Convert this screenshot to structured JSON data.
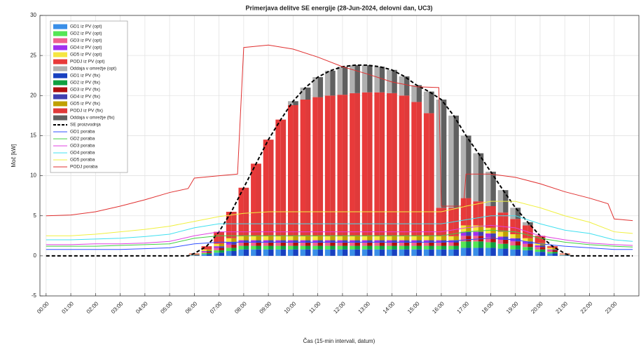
{
  "chart_data": {
    "type": "bar",
    "title": "Primerjava delitve SE energije (28-Jun-2024, delovni dan, UC3)",
    "xlabel": "Čas (15-min intervali, datum)",
    "ylabel": "Moč [kW]",
    "x": [
      6,
      6.5,
      7,
      7.5,
      8,
      8.5,
      9,
      9.5,
      10,
      10.5,
      11,
      11.5,
      12,
      12.5,
      13,
      13.5,
      14,
      14.5,
      15,
      15.5,
      16,
      16.5,
      17,
      17.5,
      18,
      18.5,
      19,
      19.5,
      20,
      20.5,
      21
    ],
    "xlim": [
      -0.25,
      24
    ],
    "xticks": [
      {
        "value": 0,
        "label": "00:00"
      },
      {
        "value": 1,
        "label": "01:00"
      },
      {
        "value": 2,
        "label": "02:00"
      },
      {
        "value": 3,
        "label": "03:00"
      },
      {
        "value": 4,
        "label": "04:00"
      },
      {
        "value": 5,
        "label": "05:00"
      },
      {
        "value": 6,
        "label": "06:00"
      },
      {
        "value": 7,
        "label": "07:00"
      },
      {
        "value": 8,
        "label": "08:00"
      },
      {
        "value": 9,
        "label": "09:00"
      },
      {
        "value": 10,
        "label": "10:00"
      },
      {
        "value": 11,
        "label": "11:00"
      },
      {
        "value": 12,
        "label": "12:00"
      },
      {
        "value": 13,
        "label": "13:00"
      },
      {
        "value": 14,
        "label": "14:00"
      },
      {
        "value": 15,
        "label": "15:00"
      },
      {
        "value": 16,
        "label": "16:00"
      },
      {
        "value": 17,
        "label": "17:00"
      },
      {
        "value": 18,
        "label": "18:00"
      },
      {
        "value": 19,
        "label": "19:00"
      },
      {
        "value": 20,
        "label": "20:00"
      },
      {
        "value": 21,
        "label": "21:00"
      },
      {
        "value": 22,
        "label": "22:00"
      },
      {
        "value": 23,
        "label": "23:00"
      }
    ],
    "ylim": [
      -5,
      30
    ],
    "yticks": [
      -5,
      0,
      5,
      10,
      15,
      20,
      25,
      30
    ],
    "grid": true,
    "legend": "upper left",
    "series": [
      {
        "name": "GD1 iz PV (opt)",
        "type": "bar",
        "color": "#3a8fe8",
        "values": [
          0.05,
          0.2,
          0.4,
          0.6,
          0.8,
          0.8,
          0.8,
          0.8,
          0.8,
          0.8,
          0.8,
          0.8,
          0.8,
          0.8,
          0.8,
          0.8,
          0.8,
          0.8,
          0.8,
          0.8,
          0.8,
          0.8,
          1.0,
          1.0,
          1.0,
          0.9,
          0.8,
          0.7,
          0.5,
          0.3,
          0.05
        ]
      },
      {
        "name": "GD2 iz PV (opt)",
        "type": "bar",
        "color": "#55e655",
        "values": [
          0.05,
          0.15,
          0.3,
          0.4,
          0.45,
          0.45,
          0.45,
          0.45,
          0.45,
          0.45,
          0.45,
          0.45,
          0.45,
          0.45,
          0.45,
          0.45,
          0.45,
          0.45,
          0.45,
          0.45,
          0.45,
          0.45,
          0.8,
          0.8,
          0.7,
          0.6,
          0.5,
          0.4,
          0.3,
          0.2,
          0.05
        ]
      },
      {
        "name": "GD3 iz PV (opt)",
        "type": "bar",
        "color": "#f06090",
        "values": [
          0.05,
          0.15,
          0.3,
          0.4,
          0.4,
          0.4,
          0.4,
          0.4,
          0.4,
          0.4,
          0.4,
          0.4,
          0.4,
          0.4,
          0.4,
          0.4,
          0.4,
          0.4,
          0.4,
          0.4,
          0.4,
          0.4,
          0.7,
          0.7,
          0.6,
          0.5,
          0.5,
          0.4,
          0.3,
          0.2,
          0.05
        ]
      },
      {
        "name": "GD4 iz PV (opt)",
        "type": "bar",
        "color": "#a030f0",
        "values": [
          0.03,
          0.1,
          0.2,
          0.3,
          0.3,
          0.3,
          0.3,
          0.3,
          0.3,
          0.3,
          0.3,
          0.3,
          0.3,
          0.3,
          0.3,
          0.3,
          0.3,
          0.3,
          0.3,
          0.3,
          0.3,
          0.3,
          0.5,
          0.5,
          0.5,
          0.4,
          0.4,
          0.3,
          0.2,
          0.1,
          0.03
        ]
      },
      {
        "name": "GD5 iz PV (opt)",
        "type": "bar",
        "color": "#f5e642",
        "values": [
          0.05,
          0.2,
          0.3,
          0.5,
          0.5,
          0.5,
          0.5,
          0.5,
          0.5,
          0.5,
          0.5,
          0.5,
          0.5,
          0.5,
          0.5,
          0.5,
          0.5,
          0.5,
          0.5,
          0.5,
          0.5,
          0.5,
          0.8,
          0.8,
          0.7,
          0.6,
          0.5,
          0.4,
          0.3,
          0.2,
          0.05
        ]
      },
      {
        "name": "PODJ iz PV (opt)",
        "type": "bar",
        "color": "#e83a3a",
        "values": [
          0.07,
          0.4,
          1.5,
          3.3,
          6.05,
          9.05,
          12.05,
          14.55,
          16.35,
          17.05,
          17.35,
          17.55,
          17.65,
          17.85,
          17.95,
          17.95,
          17.85,
          17.55,
          16.75,
          15.35,
          3.55,
          3.55,
          3.4,
          3.0,
          2.7,
          2.4,
          1.9,
          1.6,
          0.9,
          0.2,
          0.07
        ]
      },
      {
        "name": "Oddaja v omrežje (opt)",
        "type": "bar",
        "color": "#b0b0b0",
        "values": [
          0,
          0,
          0,
          0,
          0,
          0,
          0,
          0,
          0.5,
          1.5,
          2.5,
          3.1,
          3.5,
          3.5,
          3.4,
          3.2,
          2.9,
          2.4,
          2.1,
          2.7,
          13.5,
          11.5,
          7.8,
          6.0,
          4.3,
          2.8,
          1.4,
          0.4,
          0,
          0,
          0
        ]
      },
      {
        "name": "GD1 iz PV (fix)",
        "type": "bar",
        "color": "#1840c0",
        "values": [
          0.05,
          0.2,
          0.4,
          0.6,
          0.8,
          0.8,
          0.8,
          0.8,
          0.8,
          0.8,
          0.8,
          0.8,
          0.8,
          0.8,
          0.8,
          0.8,
          0.8,
          0.8,
          0.8,
          0.8,
          0.8,
          0.8,
          1.0,
          1.0,
          1.0,
          0.9,
          0.8,
          0.7,
          0.5,
          0.3,
          0.05
        ]
      },
      {
        "name": "GD2 iz PV (fix)",
        "type": "bar",
        "color": "#10a040",
        "values": [
          0.05,
          0.15,
          0.3,
          0.4,
          0.45,
          0.45,
          0.45,
          0.45,
          0.45,
          0.45,
          0.45,
          0.45,
          0.45,
          0.45,
          0.45,
          0.45,
          0.45,
          0.45,
          0.45,
          0.45,
          0.45,
          0.45,
          0.8,
          0.8,
          0.7,
          0.6,
          0.5,
          0.4,
          0.3,
          0.2,
          0.05
        ]
      },
      {
        "name": "GD3 iz PV (fix)",
        "type": "bar",
        "color": "#b01010",
        "values": [
          0.05,
          0.15,
          0.3,
          0.4,
          0.4,
          0.4,
          0.4,
          0.4,
          0.4,
          0.4,
          0.4,
          0.4,
          0.4,
          0.4,
          0.4,
          0.4,
          0.4,
          0.4,
          0.4,
          0.4,
          0.4,
          0.4,
          0.7,
          0.7,
          0.6,
          0.5,
          0.5,
          0.4,
          0.3,
          0.2,
          0.05
        ]
      },
      {
        "name": "GD4 iz PV (fix)",
        "type": "bar",
        "color": "#4040b0",
        "values": [
          0.03,
          0.1,
          0.2,
          0.3,
          0.3,
          0.3,
          0.3,
          0.3,
          0.3,
          0.3,
          0.3,
          0.3,
          0.3,
          0.3,
          0.3,
          0.3,
          0.3,
          0.3,
          0.3,
          0.3,
          0.3,
          0.3,
          0.5,
          0.5,
          0.5,
          0.4,
          0.4,
          0.3,
          0.2,
          0.1,
          0.03
        ]
      },
      {
        "name": "GD5 iz PV (fix)",
        "type": "bar",
        "color": "#c0a000",
        "values": [
          0.05,
          0.2,
          0.3,
          0.5,
          0.5,
          0.5,
          0.5,
          0.5,
          0.5,
          0.5,
          0.5,
          0.5,
          0.5,
          0.5,
          0.5,
          0.5,
          0.5,
          0.5,
          0.5,
          0.5,
          0.5,
          0.5,
          0.8,
          0.8,
          0.7,
          0.6,
          0.5,
          0.4,
          0.3,
          0.2,
          0.05
        ]
      },
      {
        "name": "PODJ iz PV (fix)",
        "type": "bar",
        "color": "#e03a3a",
        "values": [
          0.07,
          0.4,
          1.5,
          3.3,
          6.05,
          9.05,
          12.05,
          14.55,
          16.35,
          17.05,
          17.35,
          17.55,
          17.65,
          17.85,
          17.95,
          17.95,
          17.85,
          17.55,
          16.75,
          15.35,
          3.55,
          3.55,
          3.4,
          3.0,
          2.7,
          2.4,
          1.9,
          1.6,
          0.9,
          0.2,
          0.07
        ]
      },
      {
        "name": "Oddaja v omrežje (fix)",
        "type": "bar",
        "color": "#606060",
        "values": [
          0,
          0,
          0,
          0,
          0,
          0,
          0,
          0,
          0.5,
          1.5,
          2.5,
          3.1,
          3.5,
          3.5,
          3.4,
          3.2,
          2.9,
          2.4,
          2.1,
          2.7,
          13.5,
          11.5,
          7.8,
          6.0,
          4.3,
          2.8,
          1.4,
          0.4,
          0,
          0,
          0
        ]
      },
      {
        "name": "SE proizvodnja",
        "type": "line",
        "linestyle": "dashed",
        "color": "#000000",
        "x": [
          0,
          5.75,
          6,
          6.5,
          7,
          7.5,
          8,
          8.5,
          9,
          9.5,
          10,
          10.5,
          11,
          11.5,
          12,
          12.5,
          13,
          13.5,
          14,
          14.5,
          15,
          15.5,
          16,
          16.5,
          17,
          17.5,
          18,
          18.5,
          19,
          19.5,
          20,
          20.5,
          21,
          21.25,
          23.75
        ],
        "values": [
          0,
          0,
          0.3,
          1.2,
          3,
          5.5,
          8.5,
          11.5,
          14.5,
          17,
          19.3,
          21,
          22.3,
          23.1,
          23.6,
          23.8,
          23.8,
          23.6,
          23.2,
          22.4,
          21.3,
          20.5,
          19.5,
          17.5,
          15,
          12.8,
          10.5,
          8.2,
          6,
          4.2,
          2.5,
          1.2,
          0.3,
          0,
          0
        ]
      },
      {
        "name": "GD1 poraba",
        "type": "line",
        "color": "#3050ff",
        "x": [
          0,
          1,
          2,
          3,
          4,
          5,
          6,
          7,
          8,
          9,
          10,
          11,
          12,
          13,
          14,
          15,
          16,
          17,
          18,
          19,
          20,
          21,
          22,
          23,
          23.75
        ],
        "values": [
          0.8,
          0.8,
          0.8,
          0.8,
          0.9,
          1.0,
          1.5,
          1.7,
          1.7,
          1.7,
          1.7,
          1.7,
          1.7,
          1.7,
          1.7,
          1.7,
          1.7,
          2.0,
          2.2,
          2.0,
          1.5,
          1.2,
          1.0,
          0.8,
          0.8
        ]
      },
      {
        "name": "GD2 poraba",
        "type": "line",
        "color": "#40d040",
        "x": [
          0,
          1,
          2,
          3,
          4,
          5,
          6,
          7,
          8,
          9,
          10,
          11,
          12,
          13,
          14,
          15,
          16,
          17,
          18,
          19,
          20,
          21,
          22,
          23,
          23.75
        ],
        "values": [
          1.2,
          1.2,
          1.2,
          1.3,
          1.4,
          1.5,
          2.2,
          2.5,
          2.5,
          2.5,
          2.5,
          2.5,
          2.5,
          2.5,
          2.5,
          2.5,
          2.5,
          3.0,
          3.2,
          3.0,
          2.2,
          1.7,
          1.4,
          1.2,
          1.1
        ]
      },
      {
        "name": "GD3 poraba",
        "type": "line",
        "color": "#e040e0",
        "x": [
          0,
          1,
          2,
          3,
          4,
          5,
          6,
          7,
          8,
          9,
          10,
          11,
          12,
          13,
          14,
          15,
          16,
          17,
          18,
          19,
          20,
          21,
          22,
          23,
          23.75
        ],
        "values": [
          1.4,
          1.4,
          1.5,
          1.5,
          1.6,
          1.8,
          2.5,
          3.0,
          3.0,
          3.0,
          3.0,
          3.0,
          3.0,
          3.0,
          3.0,
          3.0,
          3.0,
          3.5,
          3.8,
          3.5,
          2.5,
          2.0,
          1.6,
          1.4,
          1.3
        ]
      },
      {
        "name": "GD4 poraba",
        "type": "line",
        "color": "#40e0f0",
        "x": [
          0,
          1,
          2,
          3,
          4,
          5,
          6,
          7,
          8,
          9,
          10,
          11,
          12,
          13,
          14,
          15,
          16,
          17,
          18,
          19,
          20,
          21,
          22,
          23,
          23.75
        ],
        "values": [
          2.0,
          2.0,
          2.1,
          2.2,
          2.4,
          2.7,
          3.5,
          4.0,
          4.0,
          4.0,
          4.0,
          4.0,
          4.0,
          4.0,
          4.0,
          4.0,
          4.0,
          4.5,
          5.0,
          5.0,
          4.0,
          3.2,
          2.8,
          2.0,
          1.8
        ]
      },
      {
        "name": "GD5 poraba",
        "type": "line",
        "color": "#f0f040",
        "x": [
          0,
          1,
          2,
          3,
          4,
          5,
          6,
          7,
          8,
          9,
          10,
          11,
          12,
          13,
          14,
          15,
          16,
          17,
          18,
          19,
          20,
          21,
          22,
          23,
          23.75
        ],
        "values": [
          2.5,
          2.5,
          2.7,
          3.0,
          3.3,
          3.7,
          4.3,
          4.9,
          5.3,
          5.5,
          5.5,
          5.5,
          5.5,
          5.5,
          5.5,
          5.5,
          5.5,
          6.2,
          6.8,
          6.8,
          6.0,
          5.0,
          4.2,
          3.0,
          2.8
        ]
      },
      {
        "name": "PODJ poraba",
        "type": "line",
        "color": "#e03030",
        "x": [
          0,
          1,
          2,
          3,
          4,
          5,
          5.75,
          6,
          7,
          7.75,
          8,
          9,
          10,
          11,
          12,
          13,
          14,
          15,
          15.9,
          16,
          16.9,
          17,
          18,
          19,
          20,
          21,
          22,
          22.75,
          23,
          23.75
        ],
        "values": [
          5,
          5.1,
          5.5,
          6.2,
          7,
          7.9,
          8.4,
          9.7,
          10,
          10.2,
          26,
          26.3,
          25.8,
          24.8,
          23.6,
          22.7,
          21.7,
          21.1,
          21,
          6.2,
          6.2,
          10.2,
          10.2,
          9.8,
          9,
          8,
          7.2,
          6.5,
          4.6,
          4.4
        ]
      }
    ]
  }
}
